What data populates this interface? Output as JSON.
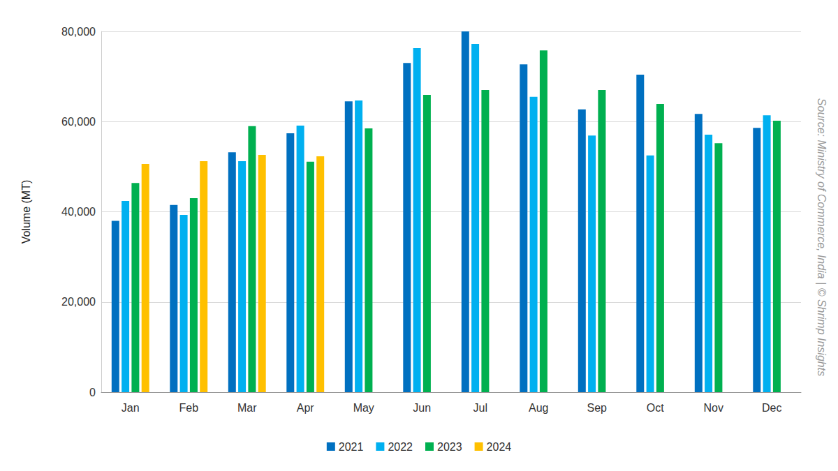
{
  "chart_data": {
    "type": "bar",
    "y_label": "Volume (MT)",
    "categories": [
      "Jan",
      "Feb",
      "Mar",
      "Apr",
      "May",
      "Jun",
      "Jul",
      "Aug",
      "Sep",
      "Oct",
      "Nov",
      "Dec"
    ],
    "series": [
      {
        "name": "2021",
        "color": "#0070c0",
        "values": [
          38000,
          41500,
          53200,
          57400,
          64500,
          73000,
          80000,
          72700,
          62700,
          70400,
          61700,
          58600
        ]
      },
      {
        "name": "2022",
        "color": "#00b0f0",
        "values": [
          42400,
          39300,
          51200,
          59100,
          64700,
          76300,
          77200,
          65500,
          56900,
          52500,
          57100,
          61400
        ]
      },
      {
        "name": "2023",
        "color": "#00b050",
        "values": [
          46400,
          43000,
          59000,
          51100,
          58500,
          65900,
          67000,
          75800,
          67000,
          63900,
          55200,
          60200
        ]
      },
      {
        "name": "2024",
        "color": "#ffc000",
        "values": [
          50600,
          51200,
          52600,
          52300,
          null,
          null,
          null,
          null,
          null,
          null,
          null,
          null
        ]
      }
    ],
    "ylim": [
      0,
      80000
    ],
    "yticks": [
      0,
      {
        "value": 20000,
        "label": "20,000"
      },
      {
        "value": 40000,
        "label": "40,000"
      },
      {
        "value": 60000,
        "label": "60,000"
      },
      {
        "value": 80000,
        "label": "80,000"
      }
    ],
    "grid": true,
    "legend": "bottom",
    "annotations": [
      "Source: Ministry of Commerce, India | © Shrimp Insights"
    ]
  }
}
